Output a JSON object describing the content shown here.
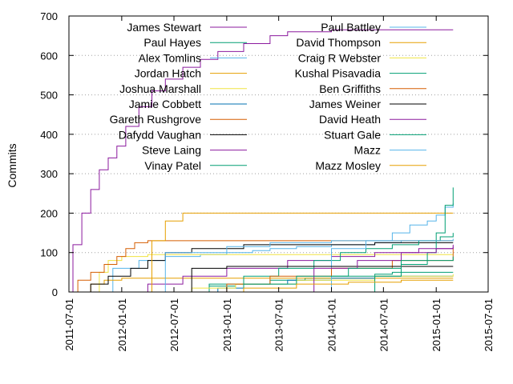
{
  "chart_data": {
    "type": "line",
    "title": "",
    "xlabel": "",
    "ylabel": "Commits",
    "x_axis": {
      "type": "date",
      "range": [
        "2011-07-01",
        "2015-07-01"
      ],
      "tick_labels": [
        "2011-07-01",
        "2012-01-01",
        "2012-07-01",
        "2013-01-01",
        "2013-07-01",
        "2014-01-01",
        "2014-07-01",
        "2015-01-01",
        "2015-07-01"
      ]
    },
    "y_axis": {
      "range": [
        0,
        700
      ],
      "ticks": [
        0,
        100,
        200,
        300,
        400,
        500,
        600,
        700
      ]
    },
    "grid": "horizontal dotted at 100, 200, 300, 400, 500, 600",
    "legend_placement": "top, two columns",
    "series": [
      {
        "name": "James Stewart",
        "color": "#8b1a9e",
        "x": [
          "2011-07-01",
          "2011-07-15",
          "2011-08-15",
          "2011-09-15",
          "2011-10-15",
          "2011-11-15",
          "2011-12-15",
          "2012-01-15",
          "2012-03-01",
          "2012-04-15",
          "2012-06-01",
          "2012-08-01",
          "2012-10-01",
          "2012-12-01",
          "2013-03-01",
          "2013-06-01",
          "2013-08-01",
          "2013-10-01",
          "2014-01-01",
          "2014-06-01",
          "2015-01-01",
          "2015-03-01"
        ],
        "y": [
          0,
          120,
          200,
          260,
          310,
          340,
          370,
          420,
          470,
          510,
          540,
          570,
          590,
          610,
          630,
          650,
          660,
          660,
          665,
          665,
          665,
          665
        ]
      },
      {
        "name": "Paul Hayes",
        "color": "#009e73",
        "x": [
          "2012-09-01",
          "2012-11-01",
          "2013-02-01",
          "2013-06-01",
          "2013-10-01",
          "2014-01-01",
          "2014-03-01",
          "2014-06-01",
          "2014-08-01",
          "2014-10-01",
          "2014-12-01",
          "2015-01-15",
          "2015-03-01"
        ],
        "y": [
          0,
          15,
          20,
          30,
          35,
          40,
          40,
          45,
          50,
          50,
          50,
          50,
          50
        ]
      },
      {
        "name": "Alex Tomlins",
        "color": "#56b4e9",
        "x": [
          "2011-10-15",
          "2011-12-01",
          "2012-03-01",
          "2012-06-01",
          "2012-10-01",
          "2013-01-01",
          "2013-04-01",
          "2013-06-01",
          "2013-09-01",
          "2014-01-01",
          "2014-06-01",
          "2014-09-01",
          "2014-11-01",
          "2015-01-01",
          "2015-03-01"
        ],
        "y": [
          0,
          60,
          80,
          90,
          95,
          100,
          105,
          110,
          115,
          120,
          125,
          130,
          130,
          130,
          130
        ]
      },
      {
        "name": "Jordan Hatch",
        "color": "#e69f00",
        "x": [
          "2011-08-15",
          "2011-09-15",
          "2011-11-01",
          "2012-01-01",
          "2012-06-01",
          "2013-01-01",
          "2014-01-01",
          "2015-03-01"
        ],
        "y": [
          0,
          20,
          30,
          35,
          35,
          35,
          35,
          35
        ]
      },
      {
        "name": "Joshua Marshall",
        "color": "#f0e442",
        "x": [
          "2011-09-15",
          "2011-10-15",
          "2011-11-15",
          "2012-01-01",
          "2012-04-01",
          "2013-01-01",
          "2014-01-01",
          "2015-03-01"
        ],
        "y": [
          0,
          50,
          80,
          90,
          95,
          95,
          95,
          95
        ]
      },
      {
        "name": "Jamie Cobbett",
        "color": "#0072b2",
        "x": [
          "2012-10-01",
          "2012-12-01",
          "2013-03-01",
          "2013-08-01",
          "2014-01-01",
          "2014-06-01",
          "2015-01-01",
          "2015-03-01"
        ],
        "y": [
          0,
          10,
          20,
          30,
          35,
          40,
          40,
          40
        ]
      },
      {
        "name": "Gareth Rushgrove",
        "color": "#d55e00",
        "x": [
          "2011-07-01",
          "2011-08-01",
          "2011-09-15",
          "2011-11-01",
          "2011-12-15",
          "2012-01-15",
          "2012-02-15",
          "2012-04-01",
          "2012-07-01",
          "2013-06-01",
          "2014-06-01",
          "2015-03-01"
        ],
        "y": [
          0,
          30,
          50,
          70,
          90,
          110,
          125,
          130,
          130,
          130,
          130,
          130
        ]
      },
      {
        "name": "Dafydd Vaughan",
        "color": "#000000",
        "x": [
          "2011-08-01",
          "2011-09-15",
          "2011-11-15",
          "2012-02-01",
          "2012-04-01",
          "2012-06-01",
          "2012-09-01",
          "2013-03-01",
          "2014-06-01",
          "2015-03-01"
        ],
        "y": [
          0,
          20,
          40,
          60,
          80,
          100,
          110,
          120,
          125,
          125
        ]
      },
      {
        "name": "Steve Laing",
        "color": "#8b1a9e",
        "x": [
          "2012-01-15",
          "2012-04-01",
          "2012-08-01",
          "2013-01-01",
          "2013-08-01",
          "2014-01-01",
          "2014-06-01",
          "2014-11-01",
          "2015-03-01"
        ],
        "y": [
          0,
          20,
          40,
          60,
          80,
          90,
          100,
          110,
          120
        ]
      },
      {
        "name": "Vinay Patel",
        "color": "#009e73",
        "x": [
          "2012-07-01",
          "2012-11-01",
          "2013-03-01",
          "2013-07-01",
          "2013-11-01",
          "2014-02-01",
          "2014-05-01",
          "2014-08-01",
          "2014-11-01",
          "2015-01-15",
          "2015-03-01"
        ],
        "y": [
          0,
          20,
          40,
          60,
          80,
          100,
          110,
          120,
          130,
          140,
          150
        ]
      },
      {
        "name": "Paul Battley",
        "color": "#56b4e9",
        "x": [
          "2013-09-01",
          "2014-01-01",
          "2014-05-01",
          "2014-08-01",
          "2014-10-01",
          "2014-12-01",
          "2015-01-01",
          "2015-02-01",
          "2015-03-01"
        ],
        "y": [
          0,
          110,
          130,
          150,
          170,
          180,
          195,
          215,
          225
        ]
      },
      {
        "name": "David Thompson",
        "color": "#e69f00",
        "x": [
          "2012-03-01",
          "2012-04-15",
          "2012-06-01",
          "2012-08-01",
          "2013-01-01",
          "2013-06-01",
          "2014-01-01",
          "2014-06-01",
          "2015-01-01",
          "2015-03-01"
        ],
        "y": [
          0,
          130,
          180,
          200,
          200,
          200,
          200,
          200,
          200,
          200
        ]
      },
      {
        "name": "Craig R Webster",
        "color": "#f0e442",
        "x": [
          "2012-04-01",
          "2012-09-01",
          "2013-02-01",
          "2013-09-01",
          "2014-06-01",
          "2015-03-01"
        ],
        "y": [
          0,
          10,
          20,
          30,
          40,
          45
        ]
      },
      {
        "name": "Kushal Pisavadia",
        "color": "#009e73",
        "x": [
          "2014-03-01",
          "2014-06-01",
          "2014-09-01",
          "2014-12-01",
          "2015-01-01",
          "2015-02-01",
          "2015-03-01"
        ],
        "y": [
          0,
          40,
          70,
          100,
          150,
          220,
          265
        ]
      },
      {
        "name": "Ben Griffiths",
        "color": "#d55e00",
        "x": [
          "2012-09-01",
          "2013-01-01",
          "2013-06-01",
          "2014-01-01",
          "2014-08-01",
          "2015-03-01"
        ],
        "y": [
          0,
          20,
          40,
          60,
          80,
          110
        ]
      },
      {
        "name": "James Weiner",
        "color": "#000000",
        "x": [
          "2012-05-01",
          "2012-09-01",
          "2013-01-01",
          "2014-01-01",
          "2015-03-01"
        ],
        "y": [
          0,
          60,
          65,
          65,
          65
        ]
      },
      {
        "name": "David Heath",
        "color": "#8b1a9e",
        "x": [
          "2013-06-01",
          "2013-11-01",
          "2014-04-01",
          "2014-09-01",
          "2015-01-01",
          "2015-03-01"
        ],
        "y": [
          0,
          60,
          80,
          100,
          110,
          115
        ]
      },
      {
        "name": "Stuart Gale",
        "color": "#009e73",
        "x": [
          "2012-11-01",
          "2013-03-01",
          "2013-09-01",
          "2014-03-01",
          "2014-09-01",
          "2015-03-01"
        ],
        "y": [
          0,
          20,
          40,
          60,
          80,
          90
        ]
      },
      {
        "name": "Mazz",
        "color": "#56b4e9",
        "x": [
          "2012-01-01",
          "2012-06-01",
          "2013-01-01",
          "2013-06-01",
          "2014-01-01",
          "2015-03-01"
        ],
        "y": [
          0,
          100,
          115,
          125,
          130,
          135
        ]
      },
      {
        "name": "Mazz Mosley",
        "color": "#e69f00",
        "x": [
          "2012-10-01",
          "2013-03-01",
          "2013-09-01",
          "2014-03-01",
          "2014-09-01",
          "2015-03-01"
        ],
        "y": [
          0,
          10,
          20,
          25,
          30,
          30
        ]
      }
    ]
  }
}
